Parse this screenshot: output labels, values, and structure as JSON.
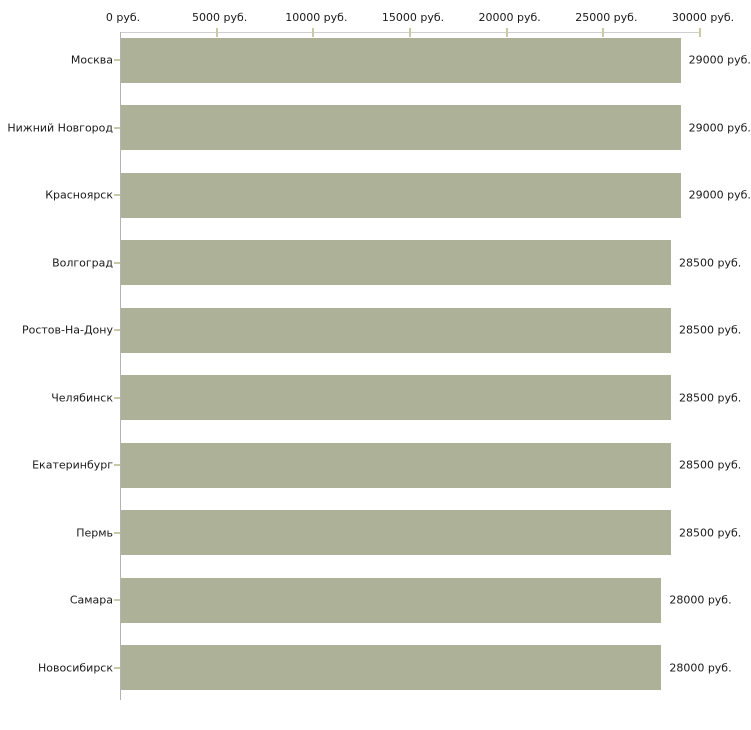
{
  "chart_data": {
    "type": "bar",
    "orientation": "horizontal",
    "categories": [
      "Москва",
      "Нижний Новгород",
      "Красноярск",
      "Волгоград",
      "Ростов-На-Дону",
      "Челябинск",
      "Екатеринбург",
      "Пермь",
      "Самара",
      "Новосибирск"
    ],
    "values": [
      29000,
      29000,
      29000,
      28500,
      28500,
      28500,
      28500,
      28500,
      28000,
      28000
    ],
    "value_labels": [
      "29000 руб.",
      "29000 руб.",
      "29000 руб.",
      "28500 руб.",
      "28500 руб.",
      "28500 руб.",
      "28500 руб.",
      "28500 руб.",
      "28000 руб.",
      "28000 руб."
    ],
    "x_tick_values": [
      0,
      5000,
      10000,
      15000,
      20000,
      25000,
      30000
    ],
    "x_tick_labels": [
      "0 руб.",
      "5000 руб.",
      "10000 руб.",
      "15000 руб.",
      "20000 руб.",
      "25000 руб.",
      "30000 руб."
    ],
    "xlim": [
      0,
      30000
    ],
    "x_unit": "руб.",
    "grid": false,
    "legend": "none",
    "colors": {
      "bar": "#adb197",
      "tick": "#c9c9a6",
      "axis_line_horizontal": "#cfcfcf",
      "axis_line_vertical": "#b3b3b3",
      "text": "#1a1a1a",
      "background": "#ffffff"
    }
  }
}
